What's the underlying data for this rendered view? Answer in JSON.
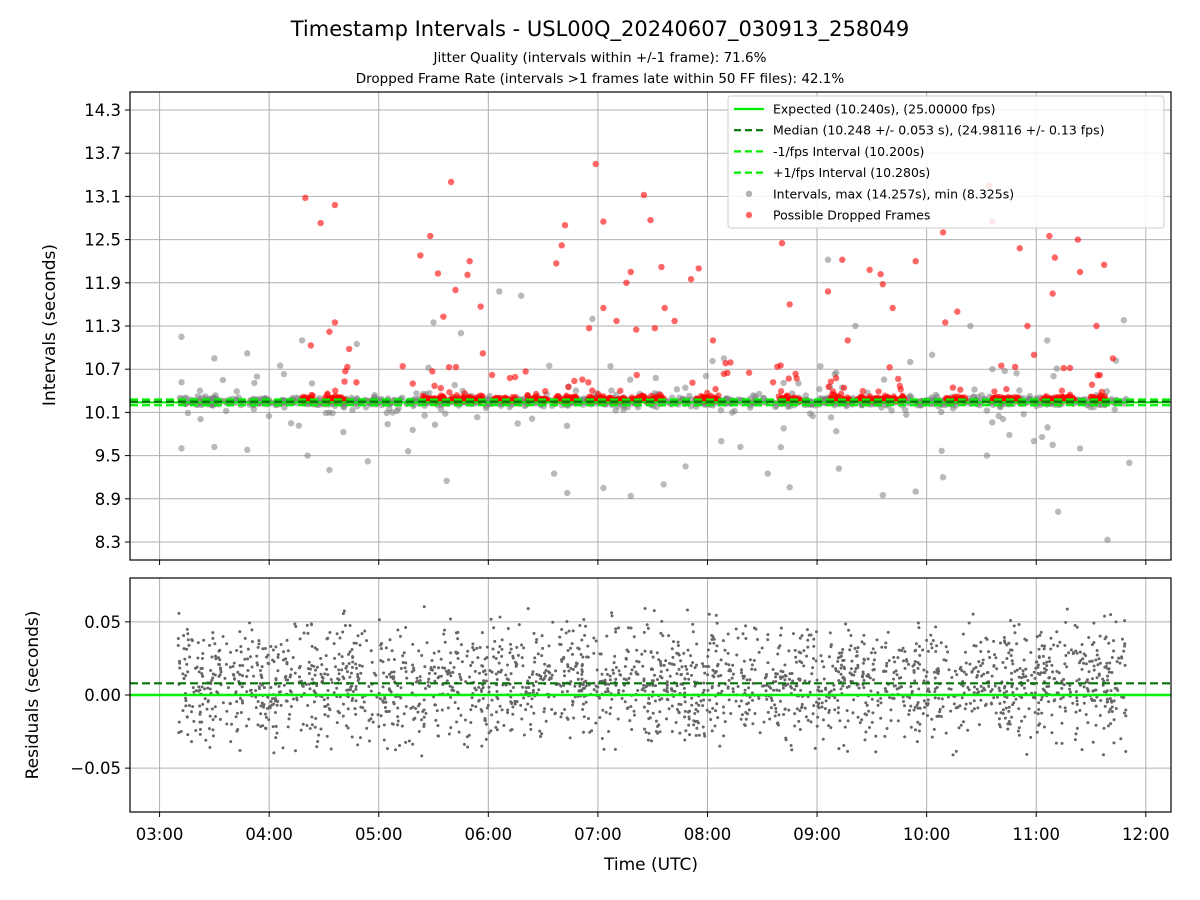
{
  "title": "Timestamp Intervals - USL00Q_20240607_030913_258049",
  "subtitle_lines": [
    "Jitter Quality (intervals within +/-1 frame): 71.6%",
    "Dropped Frame Rate (intervals >1 frames late within 50 FF files): 42.1%"
  ],
  "colors": {
    "expected": "#00ee00",
    "median": "#007700",
    "interval_bounds": "#00ee00",
    "intervals": "#808080",
    "dropped": "#ff0000",
    "grid": "#b0b0b0"
  },
  "chart_data": [
    {
      "type": "scatter",
      "title": "Timestamp Intervals - USL00Q_20240607_030913_258049",
      "xlabel": "",
      "ylabel": "Intervals (seconds)",
      "x_unit": "hours UTC",
      "xlim": [
        2.73,
        12.23
      ],
      "ylim": [
        8.05,
        14.55
      ],
      "y_ticks": [
        "8.3",
        "8.9",
        "9.5",
        "10.1",
        "10.7",
        "11.3",
        "11.9",
        "12.5",
        "13.1",
        "13.7",
        "14.3"
      ],
      "grid": true,
      "legend_position": "top-right",
      "lines": [
        {
          "name": "Expected (10.240s), (25.00000 fps)",
          "y": 10.24,
          "style": "solid"
        },
        {
          "name": "Median (10.248 +/- 0.053 s), (24.98116 +/- 0.13 fps)",
          "y": 10.248,
          "style": "dashed"
        },
        {
          "name": "-1/fps Interval (10.200s)",
          "y": 10.2,
          "style": "dashed"
        },
        {
          "name": "+1/fps Interval (10.280s)",
          "y": 10.28,
          "style": "dashed"
        }
      ],
      "series": [
        {
          "name": "Intervals, max (14.257s), min (8.325s)",
          "max": 14.257,
          "min": 8.325,
          "outliers": [
            {
              "x": 3.2,
              "y": 11.15
            },
            {
              "x": 3.2,
              "y": 9.6
            },
            {
              "x": 3.5,
              "y": 10.85
            },
            {
              "x": 3.5,
              "y": 9.62
            },
            {
              "x": 3.8,
              "y": 10.92
            },
            {
              "x": 3.8,
              "y": 9.58
            },
            {
              "x": 4.1,
              "y": 10.75
            },
            {
              "x": 4.2,
              "y": 9.95
            },
            {
              "x": 4.3,
              "y": 11.1
            },
            {
              "x": 4.35,
              "y": 9.5
            },
            {
              "x": 4.55,
              "y": 9.3
            },
            {
              "x": 4.8,
              "y": 11.05
            },
            {
              "x": 4.9,
              "y": 9.42
            },
            {
              "x": 5.5,
              "y": 11.35
            },
            {
              "x": 5.62,
              "y": 9.15
            },
            {
              "x": 5.75,
              "y": 11.2
            },
            {
              "x": 6.1,
              "y": 11.78
            },
            {
              "x": 6.3,
              "y": 11.72
            },
            {
              "x": 6.6,
              "y": 9.25
            },
            {
              "x": 6.72,
              "y": 8.98
            },
            {
              "x": 6.95,
              "y": 11.4
            },
            {
              "x": 7.05,
              "y": 9.05
            },
            {
              "x": 7.3,
              "y": 8.94
            },
            {
              "x": 7.6,
              "y": 9.1
            },
            {
              "x": 7.8,
              "y": 9.35
            },
            {
              "x": 8.15,
              "y": 10.85
            },
            {
              "x": 8.3,
              "y": 9.62
            },
            {
              "x": 8.55,
              "y": 9.25
            },
            {
              "x": 8.75,
              "y": 9.06
            },
            {
              "x": 9.1,
              "y": 12.22
            },
            {
              "x": 9.2,
              "y": 9.32
            },
            {
              "x": 9.35,
              "y": 11.3
            },
            {
              "x": 9.6,
              "y": 8.95
            },
            {
              "x": 9.85,
              "y": 10.8
            },
            {
              "x": 9.9,
              "y": 9.0
            },
            {
              "x": 10.05,
              "y": 10.9
            },
            {
              "x": 10.15,
              "y": 9.2
            },
            {
              "x": 10.4,
              "y": 11.3
            },
            {
              "x": 10.55,
              "y": 9.5
            },
            {
              "x": 10.6,
              "y": 10.7
            },
            {
              "x": 11.1,
              "y": 11.1
            },
            {
              "x": 11.15,
              "y": 9.65
            },
            {
              "x": 11.2,
              "y": 8.72
            },
            {
              "x": 11.4,
              "y": 9.6
            },
            {
              "x": 11.65,
              "y": 8.33
            },
            {
              "x": 11.8,
              "y": 11.38
            },
            {
              "x": 11.85,
              "y": 9.4
            }
          ]
        },
        {
          "name": "Possible Dropped Frames",
          "points": [
            {
              "x": 4.33,
              "y": 13.08
            },
            {
              "x": 4.47,
              "y": 12.73
            },
            {
              "x": 4.6,
              "y": 12.98
            },
            {
              "x": 4.6,
              "y": 11.35
            },
            {
              "x": 4.55,
              "y": 11.22
            },
            {
              "x": 4.38,
              "y": 11.03
            },
            {
              "x": 4.73,
              "y": 10.98
            },
            {
              "x": 5.38,
              "y": 12.28
            },
            {
              "x": 5.47,
              "y": 12.55
            },
            {
              "x": 5.54,
              "y": 12.03
            },
            {
              "x": 5.66,
              "y": 13.3
            },
            {
              "x": 5.7,
              "y": 11.8
            },
            {
              "x": 5.81,
              "y": 12.01
            },
            {
              "x": 5.83,
              "y": 12.2
            },
            {
              "x": 5.59,
              "y": 11.43
            },
            {
              "x": 5.93,
              "y": 11.57
            },
            {
              "x": 5.95,
              "y": 10.92
            },
            {
              "x": 6.62,
              "y": 12.17
            },
            {
              "x": 6.67,
              "y": 12.42
            },
            {
              "x": 6.7,
              "y": 12.7
            },
            {
              "x": 6.92,
              "y": 11.27
            },
            {
              "x": 6.98,
              "y": 13.55
            },
            {
              "x": 7.05,
              "y": 12.75
            },
            {
              "x": 7.05,
              "y": 11.55
            },
            {
              "x": 7.17,
              "y": 11.37
            },
            {
              "x": 7.26,
              "y": 11.9
            },
            {
              "x": 7.3,
              "y": 12.05
            },
            {
              "x": 7.35,
              "y": 11.25
            },
            {
              "x": 7.42,
              "y": 13.12
            },
            {
              "x": 7.48,
              "y": 12.77
            },
            {
              "x": 7.52,
              "y": 11.27
            },
            {
              "x": 7.58,
              "y": 12.12
            },
            {
              "x": 7.61,
              "y": 11.55
            },
            {
              "x": 7.7,
              "y": 11.37
            },
            {
              "x": 7.85,
              "y": 11.95
            },
            {
              "x": 7.92,
              "y": 12.1
            },
            {
              "x": 8.05,
              "y": 11.1
            },
            {
              "x": 8.68,
              "y": 12.45
            },
            {
              "x": 8.75,
              "y": 11.6
            },
            {
              "x": 9.1,
              "y": 11.78
            },
            {
              "x": 9.23,
              "y": 12.22
            },
            {
              "x": 9.28,
              "y": 11.1
            },
            {
              "x": 9.48,
              "y": 12.08
            },
            {
              "x": 9.58,
              "y": 12.02
            },
            {
              "x": 9.6,
              "y": 11.88
            },
            {
              "x": 9.69,
              "y": 11.55
            },
            {
              "x": 9.9,
              "y": 12.2
            },
            {
              "x": 10.15,
              "y": 12.6
            },
            {
              "x": 10.17,
              "y": 11.35
            },
            {
              "x": 10.28,
              "y": 11.5
            },
            {
              "x": 10.57,
              "y": 13.25
            },
            {
              "x": 10.6,
              "y": 12.75
            },
            {
              "x": 10.85,
              "y": 12.38
            },
            {
              "x": 10.92,
              "y": 11.3
            },
            {
              "x": 10.98,
              "y": 10.9
            },
            {
              "x": 11.12,
              "y": 12.55
            },
            {
              "x": 11.15,
              "y": 11.75
            },
            {
              "x": 11.17,
              "y": 12.25
            },
            {
              "x": 11.38,
              "y": 12.5
            },
            {
              "x": 11.4,
              "y": 12.05
            },
            {
              "x": 11.55,
              "y": 11.3
            },
            {
              "x": 11.62,
              "y": 12.15
            },
            {
              "x": 11.7,
              "y": 10.85
            }
          ]
        }
      ]
    },
    {
      "type": "scatter",
      "title": "",
      "xlabel": "Time (UTC)",
      "ylabel": "Residuals (seconds)",
      "xlim": [
        2.73,
        12.23
      ],
      "ylim": [
        -0.08,
        0.08
      ],
      "y_ticks": [
        "−0.05",
        "0.00",
        "0.05"
      ],
      "x_ticks": [
        "03:00",
        "04:00",
        "05:00",
        "06:00",
        "07:00",
        "08:00",
        "09:00",
        "10:00",
        "11:00",
        "12:00"
      ],
      "grid": true,
      "lines": [
        {
          "name": "Expected",
          "y": 0.0,
          "style": "solid"
        },
        {
          "name": "Median",
          "y": 0.008,
          "style": "dashed"
        }
      ],
      "series": [
        {
          "name": "",
          "distribution": {
            "x_range": [
              3.17,
              11.82
            ],
            "center": 0.008,
            "spread": 0.04
          }
        }
      ]
    }
  ]
}
